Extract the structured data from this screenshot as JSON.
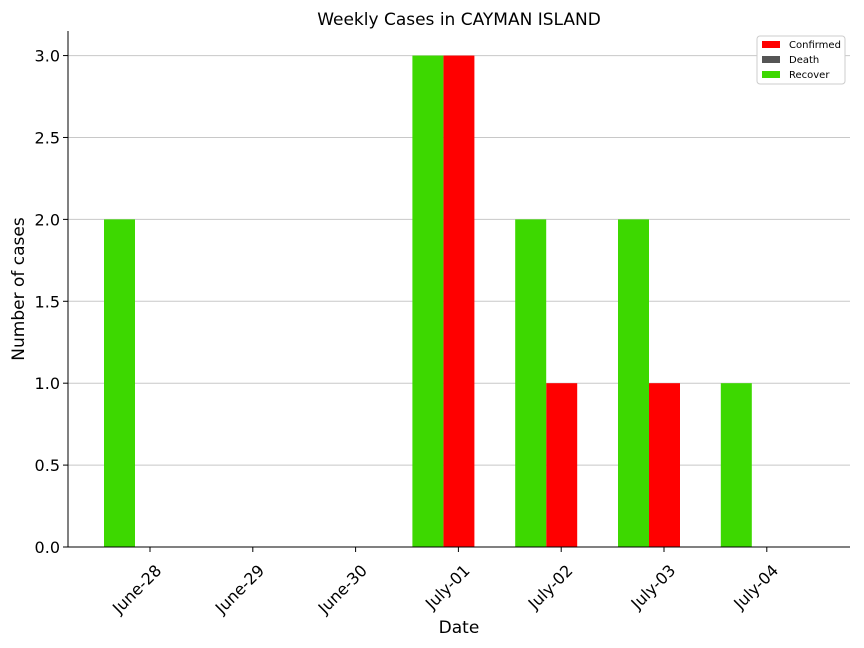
{
  "chart_data": {
    "type": "bar",
    "title": "Weekly Cases in CAYMAN ISLAND",
    "xlabel": "Date",
    "ylabel": "Number of cases",
    "categories": [
      "June-28",
      "June-29",
      "June-30",
      "July-01",
      "July-02",
      "July-03",
      "July-04"
    ],
    "series": [
      {
        "name": "Confirmed",
        "color": "#ff0000",
        "values": [
          0,
          0,
          0,
          3,
          1,
          1,
          0
        ]
      },
      {
        "name": "Death",
        "color": "#555555",
        "values": [
          0,
          0,
          0,
          0,
          0,
          0,
          0
        ]
      },
      {
        "name": "Recover",
        "color": "#3dd800",
        "values": [
          2,
          0,
          0,
          3,
          2,
          2,
          1
        ]
      }
    ],
    "ylim": [
      0,
      3.15
    ],
    "yticks": [
      "0.0",
      "0.5",
      "1.0",
      "1.5",
      "2.0",
      "2.5",
      "3.0"
    ],
    "grid": "horizontal",
    "legend_position": "top-right"
  }
}
